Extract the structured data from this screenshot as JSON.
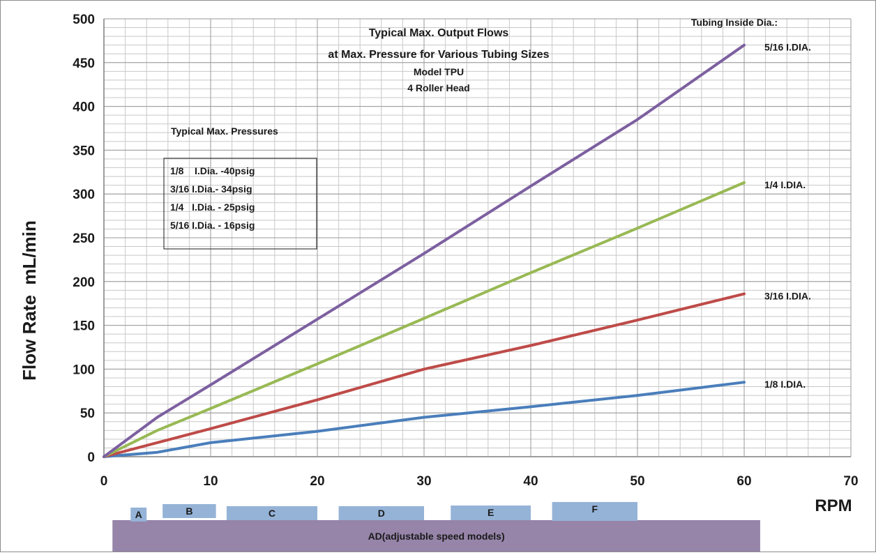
{
  "chart_data": {
    "type": "line",
    "title_lines": [
      "Typical Max. Output Flows",
      "at Max. Pressure for  Various Tubing Sizes",
      "Model TPU",
      "4 Roller Head"
    ],
    "xlabel": "RPM",
    "ylabel": "Flow Rate  mL/min",
    "xlim": [
      0,
      70
    ],
    "ylim": [
      0,
      500
    ],
    "xticks": [
      0,
      10,
      20,
      30,
      40,
      50,
      60,
      70
    ],
    "yticks": [
      0,
      50,
      100,
      150,
      200,
      250,
      300,
      350,
      400,
      450,
      500
    ],
    "grid": true,
    "x_minor_step": 2,
    "y_minor_step": 10,
    "series_heading": "Tubing Inside Dia.:",
    "series": [
      {
        "name": "1/8 I.DIA.",
        "color": "#4a7ebb",
        "points": [
          [
            0,
            0
          ],
          [
            5,
            5
          ],
          [
            10,
            16
          ],
          [
            20,
            29
          ],
          [
            30,
            45
          ],
          [
            40,
            57
          ],
          [
            50,
            70
          ],
          [
            60,
            85
          ]
        ]
      },
      {
        "name": "3/16 I.DIA.",
        "color": "#be4b48",
        "points": [
          [
            0,
            0
          ],
          [
            10,
            32
          ],
          [
            20,
            65
          ],
          [
            30,
            100
          ],
          [
            40,
            127
          ],
          [
            50,
            156
          ],
          [
            60,
            186
          ]
        ]
      },
      {
        "name": "1/4 I.DIA.",
        "color": "#98b954",
        "points": [
          [
            0,
            0
          ],
          [
            5,
            30
          ],
          [
            10,
            55
          ],
          [
            20,
            106
          ],
          [
            30,
            158
          ],
          [
            40,
            210
          ],
          [
            50,
            261
          ],
          [
            60,
            313
          ]
        ]
      },
      {
        "name": "5/16 I.DIA.",
        "color": "#7d60a0",
        "points": [
          [
            0,
            0
          ],
          [
            5,
            45
          ],
          [
            10,
            82
          ],
          [
            20,
            157
          ],
          [
            30,
            232
          ],
          [
            40,
            309
          ],
          [
            50,
            385
          ],
          [
            60,
            470
          ]
        ]
      }
    ],
    "pressure_box": {
      "heading": "Typical Max. Pressures",
      "lines": [
        "1/8    I.Dia. -40psig",
        "3/16 I.Dia.- 34psig",
        "1/4   I.Dia. - 25psig",
        "5/16 I.Dia. - 16psig"
      ]
    },
    "speed_ranges": {
      "color": "#95b3d7",
      "base_color": "#9684a9",
      "base_label": "AD(adjustable speed models)",
      "bands": [
        {
          "label": "A",
          "from": 2.5,
          "to": 4
        },
        {
          "label": "B",
          "from": 5.5,
          "to": 10.5
        },
        {
          "label": "C",
          "from": 11.5,
          "to": 20
        },
        {
          "label": "D",
          "from": 22,
          "to": 30
        },
        {
          "label": "E",
          "from": 32.5,
          "to": 40
        },
        {
          "label": "F",
          "from": 42,
          "to": 50
        }
      ]
    }
  }
}
